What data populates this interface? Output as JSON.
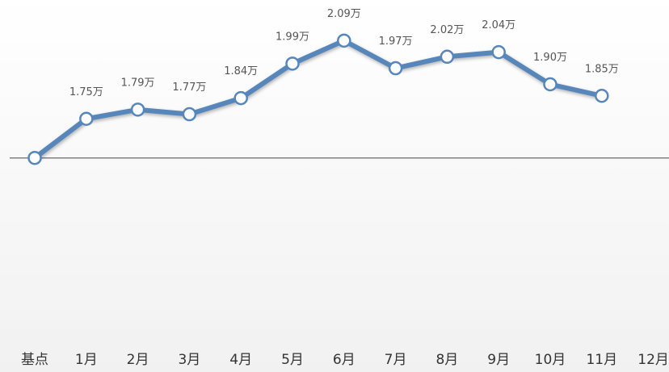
{
  "chart_data": {
    "type": "line",
    "categories": [
      "基点",
      "1月",
      "2月",
      "3月",
      "4月",
      "5月",
      "6月",
      "7月",
      "8月",
      "9月",
      "10月",
      "11月",
      "12月"
    ],
    "series": [
      {
        "color": "#5686ba",
        "values": [
          1.58,
          1.75,
          1.79,
          1.77,
          1.84,
          1.99,
          2.09,
          1.97,
          2.02,
          2.04,
          1.9,
          1.85,
          null
        ],
        "value_labels": [
          null,
          "1.75万",
          "1.79万",
          "1.77万",
          "1.84万",
          "1.99万",
          "2.09万",
          "1.97万",
          "2.02万",
          "2.04万",
          "1.90万",
          "1.85万",
          null
        ]
      }
    ],
    "ylim": [
      1.0,
      2.2
    ]
  }
}
